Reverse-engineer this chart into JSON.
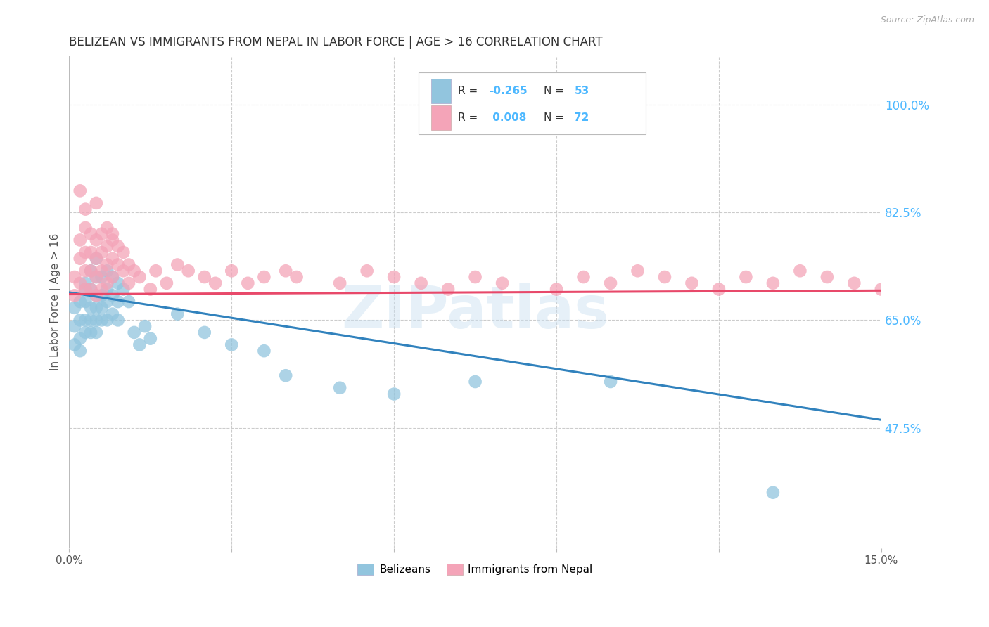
{
  "title": "BELIZEAN VS IMMIGRANTS FROM NEPAL IN LABOR FORCE | AGE > 16 CORRELATION CHART",
  "source": "Source: ZipAtlas.com",
  "ylabel": "In Labor Force | Age > 16",
  "xlim": [
    0.0,
    0.15
  ],
  "ylim": [
    0.28,
    1.08
  ],
  "grid_color": "#cccccc",
  "background_color": "#ffffff",
  "watermark": "ZIPatlas",
  "blue_color": "#92c5de",
  "pink_color": "#f4a4b8",
  "blue_line_color": "#3182bd",
  "pink_line_color": "#e8496a",
  "title_color": "#333333",
  "right_label_color": "#4db8ff",
  "blue_line_x": [
    0.0,
    0.15
  ],
  "blue_line_y": [
    0.695,
    0.488
  ],
  "pink_line_x": [
    0.0,
    0.15
  ],
  "pink_line_y": [
    0.692,
    0.698
  ],
  "belizean_x": [
    0.001,
    0.001,
    0.001,
    0.002,
    0.002,
    0.002,
    0.002,
    0.003,
    0.003,
    0.003,
    0.003,
    0.003,
    0.004,
    0.004,
    0.004,
    0.004,
    0.004,
    0.005,
    0.005,
    0.005,
    0.005,
    0.005,
    0.005,
    0.006,
    0.006,
    0.006,
    0.006,
    0.007,
    0.007,
    0.007,
    0.007,
    0.008,
    0.008,
    0.008,
    0.009,
    0.009,
    0.009,
    0.01,
    0.011,
    0.012,
    0.013,
    0.014,
    0.015,
    0.02,
    0.025,
    0.03,
    0.036,
    0.04,
    0.05,
    0.06,
    0.075,
    0.1,
    0.13
  ],
  "belizean_y": [
    0.67,
    0.64,
    0.61,
    0.68,
    0.65,
    0.62,
    0.6,
    0.71,
    0.68,
    0.65,
    0.63,
    0.7,
    0.73,
    0.7,
    0.67,
    0.65,
    0.63,
    0.75,
    0.72,
    0.69,
    0.67,
    0.65,
    0.63,
    0.72,
    0.69,
    0.67,
    0.65,
    0.73,
    0.7,
    0.68,
    0.65,
    0.72,
    0.69,
    0.66,
    0.71,
    0.68,
    0.65,
    0.7,
    0.68,
    0.63,
    0.61,
    0.64,
    0.62,
    0.66,
    0.63,
    0.61,
    0.6,
    0.56,
    0.54,
    0.53,
    0.55,
    0.55,
    0.37
  ],
  "nepal_x": [
    0.001,
    0.001,
    0.002,
    0.002,
    0.002,
    0.003,
    0.003,
    0.003,
    0.003,
    0.004,
    0.004,
    0.004,
    0.004,
    0.005,
    0.005,
    0.005,
    0.005,
    0.006,
    0.006,
    0.006,
    0.006,
    0.007,
    0.007,
    0.007,
    0.007,
    0.008,
    0.008,
    0.008,
    0.009,
    0.009,
    0.01,
    0.01,
    0.011,
    0.011,
    0.012,
    0.013,
    0.015,
    0.016,
    0.018,
    0.02,
    0.022,
    0.025,
    0.027,
    0.03,
    0.033,
    0.036,
    0.04,
    0.042,
    0.05,
    0.055,
    0.06,
    0.065,
    0.07,
    0.075,
    0.08,
    0.09,
    0.095,
    0.1,
    0.105,
    0.11,
    0.115,
    0.12,
    0.125,
    0.13,
    0.135,
    0.14,
    0.145,
    0.15,
    0.002,
    0.003,
    0.005,
    0.008
  ],
  "nepal_y": [
    0.72,
    0.69,
    0.78,
    0.75,
    0.71,
    0.8,
    0.76,
    0.73,
    0.7,
    0.79,
    0.76,
    0.73,
    0.7,
    0.78,
    0.75,
    0.72,
    0.69,
    0.79,
    0.76,
    0.73,
    0.7,
    0.8,
    0.77,
    0.74,
    0.71,
    0.78,
    0.75,
    0.72,
    0.77,
    0.74,
    0.76,
    0.73,
    0.74,
    0.71,
    0.73,
    0.72,
    0.7,
    0.73,
    0.71,
    0.74,
    0.73,
    0.72,
    0.71,
    0.73,
    0.71,
    0.72,
    0.73,
    0.72,
    0.71,
    0.73,
    0.72,
    0.71,
    0.7,
    0.72,
    0.71,
    0.7,
    0.72,
    0.71,
    0.73,
    0.72,
    0.71,
    0.7,
    0.72,
    0.71,
    0.73,
    0.72,
    0.71,
    0.7,
    0.86,
    0.83,
    0.84,
    0.79
  ]
}
